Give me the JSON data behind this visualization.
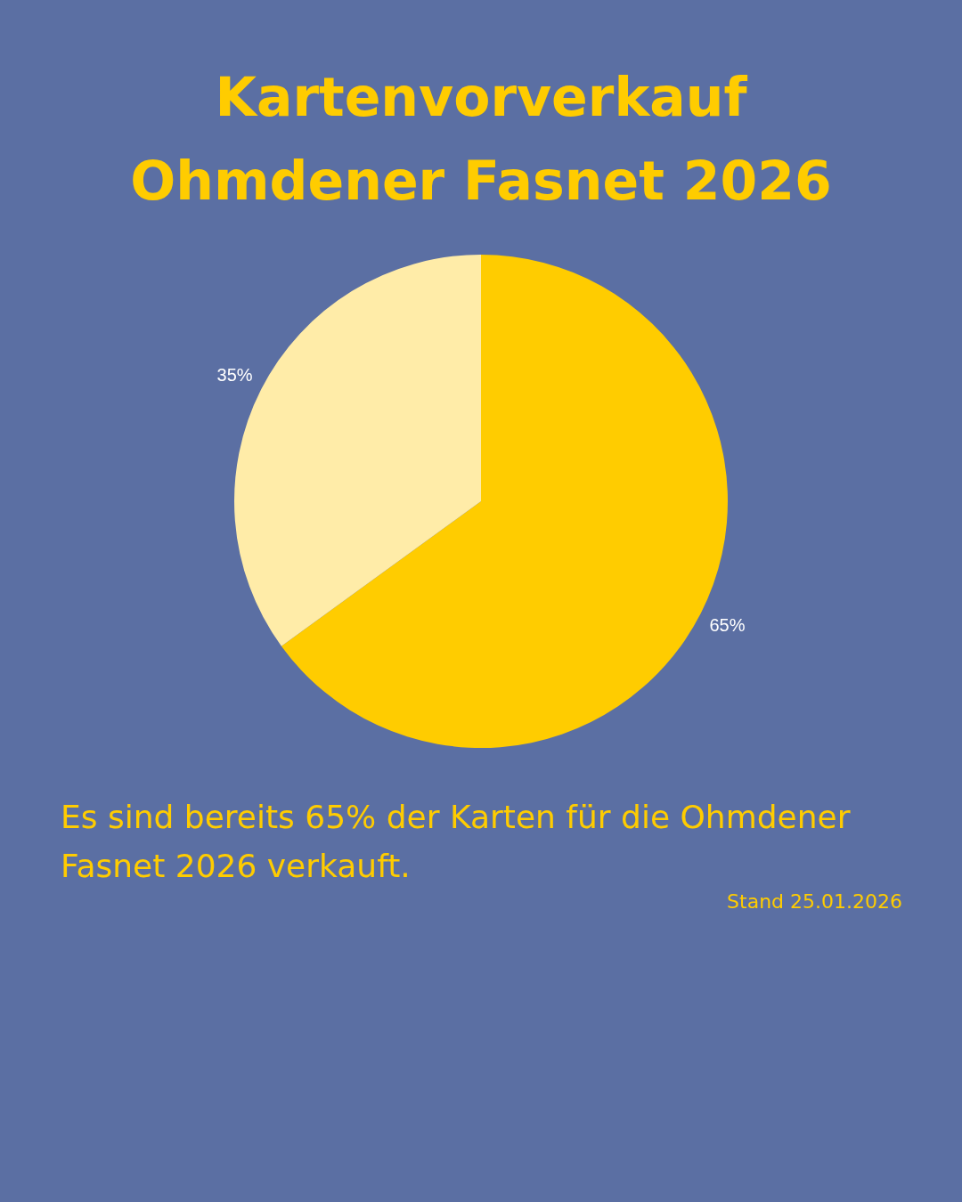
{
  "chart_data": {
    "type": "pie",
    "title": "Kartenvorverkauf\nOhmdener Fasnet 2026",
    "categories": [
      null,
      null
    ],
    "values": [
      65,
      35
    ],
    "colors": [
      "#ffcc00",
      "#ffeca8"
    ],
    "value_labels": [
      "65%",
      "35%"
    ],
    "legend": false,
    "annotations": [
      "Es sind bereits 65% der Karten für die Ohmdener Fasnet 2026 verkauft.",
      "Stand 25.01.2026"
    ]
  }
}
